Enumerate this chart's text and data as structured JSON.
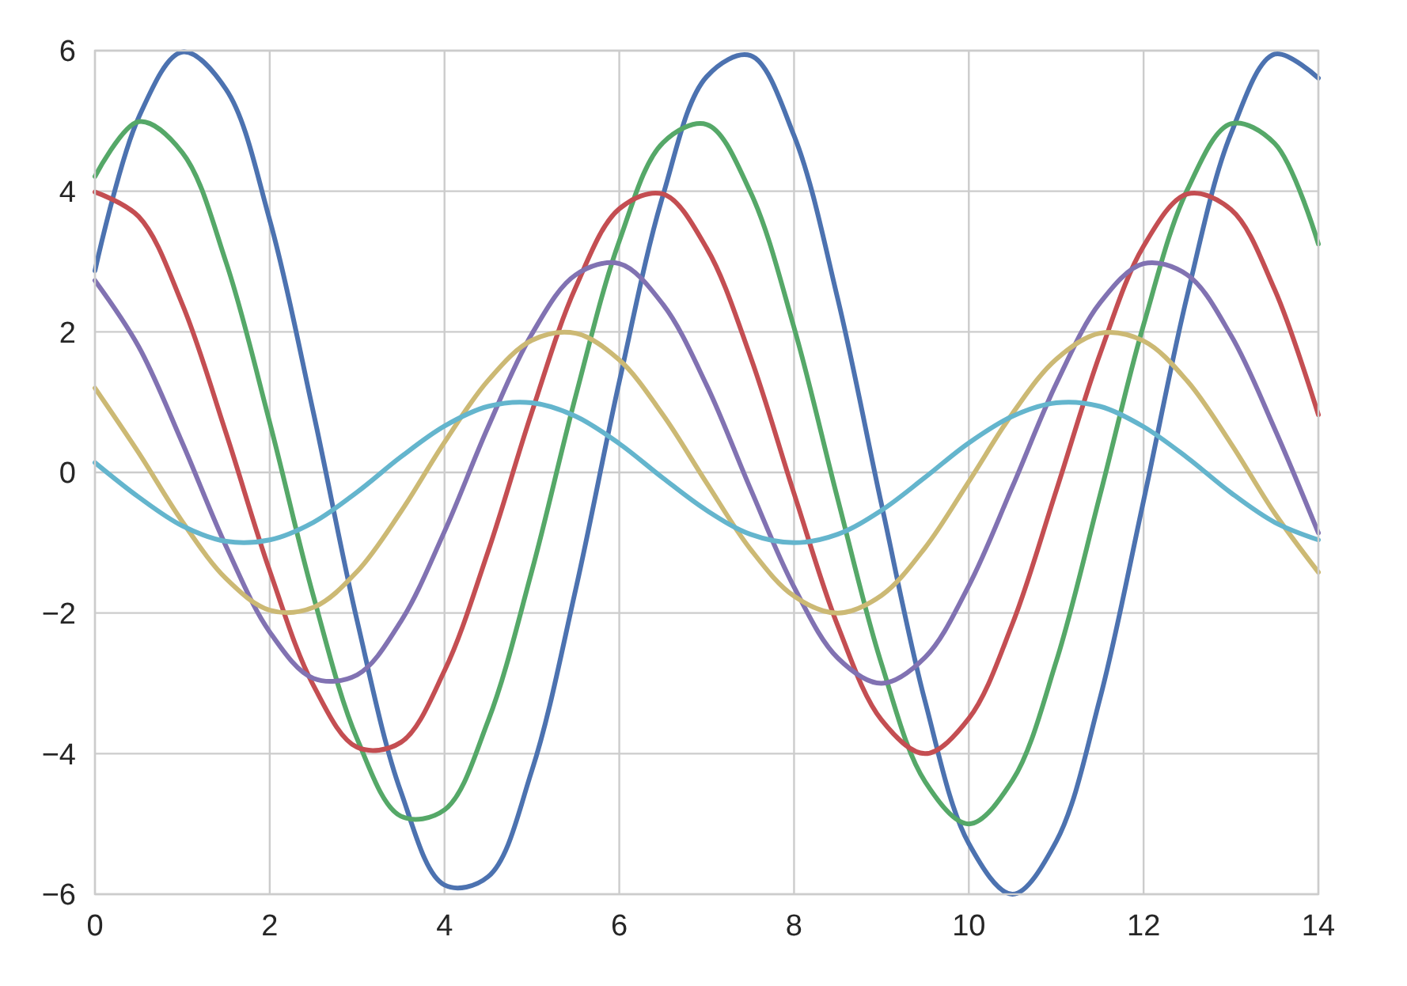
{
  "chart_data": {
    "type": "line",
    "x": [
      0,
      0.5,
      1,
      1.5,
      2,
      2.5,
      3,
      3.5,
      4,
      4.5,
      5,
      5.5,
      6,
      6.5,
      7,
      7.5,
      8,
      8.5,
      9,
      9.5,
      10,
      10.5,
      11,
      11.5,
      12,
      12.5,
      13,
      13.5,
      14
    ],
    "xlim": [
      0,
      14
    ],
    "xticks": [
      0,
      2,
      4,
      6,
      8,
      10,
      12,
      14
    ],
    "ylim": [
      -6,
      6
    ],
    "yticks": [
      {
        "value": -6,
        "label": "−6"
      },
      {
        "value": -4,
        "label": "−4"
      },
      {
        "value": -2,
        "label": "−2"
      },
      0,
      2,
      4,
      6
    ],
    "grid": true,
    "series": [
      {
        "color": "#4c72b0",
        "values": [
          2.87,
          5.05,
          5.98,
          5.45,
          3.59,
          0.85,
          -2.11,
          -4.54,
          -5.87,
          -5.75,
          -4.24,
          -1.67,
          1.29,
          3.94,
          5.63,
          5.93,
          4.79,
          2.47,
          -0.45,
          -3.26,
          -5.28,
          -6.0,
          -5.25,
          -3.22,
          -0.4,
          2.52,
          4.82,
          5.95,
          5.61
        ]
      },
      {
        "color": "#55a868",
        "values": [
          4.21,
          4.99,
          4.55,
          2.99,
          0.71,
          -1.76,
          -3.79,
          -4.89,
          -4.8,
          -3.53,
          -1.4,
          1.08,
          3.29,
          4.69,
          4.95,
          3.99,
          2.06,
          -0.38,
          -2.72,
          -4.4,
          -5.0,
          -4.38,
          -2.69,
          -0.33,
          2.1,
          4.02,
          4.96,
          4.68,
          3.25
        ]
      },
      {
        "color": "#c44e52",
        "values": [
          3.99,
          3.64,
          2.39,
          0.56,
          -1.4,
          -3.03,
          -3.91,
          -3.84,
          -2.82,
          -1.12,
          0.86,
          2.63,
          3.75,
          3.96,
          3.19,
          1.65,
          -0.3,
          -2.18,
          -3.52,
          -4.0,
          -3.5,
          -2.15,
          -0.26,
          1.68,
          3.22,
          3.96,
          3.74,
          2.6,
          0.82
        ]
      },
      {
        "color": "#8172b2",
        "values": [
          2.73,
          1.79,
          0.42,
          -1.05,
          -2.27,
          -2.93,
          -2.88,
          -2.12,
          -0.84,
          0.65,
          1.97,
          2.81,
          2.97,
          2.39,
          1.24,
          -0.23,
          -1.63,
          -2.64,
          -3.0,
          -2.63,
          -1.61,
          -0.2,
          1.26,
          2.41,
          2.97,
          2.81,
          1.95,
          0.62,
          -0.86
        ]
      },
      {
        "color": "#ccb974",
        "values": [
          1.2,
          0.28,
          -0.7,
          -1.51,
          -1.96,
          -1.92,
          -1.41,
          -0.56,
          0.43,
          1.31,
          1.88,
          1.98,
          1.6,
          0.82,
          -0.15,
          -1.09,
          -1.76,
          -2.0,
          -1.75,
          -1.07,
          -0.13,
          0.84,
          1.61,
          1.98,
          1.87,
          1.3,
          0.41,
          -0.58,
          -1.42
        ]
      },
      {
        "color": "#64b5cd",
        "values": [
          0.14,
          -0.35,
          -0.76,
          -0.98,
          -0.96,
          -0.71,
          -0.28,
          0.22,
          0.66,
          0.94,
          0.99,
          0.8,
          0.41,
          -0.08,
          -0.54,
          -0.88,
          -1.0,
          -0.88,
          -0.54,
          -0.07,
          0.42,
          0.8,
          0.99,
          0.94,
          0.65,
          0.21,
          -0.29,
          -0.71,
          -0.96
        ]
      }
    ]
  }
}
